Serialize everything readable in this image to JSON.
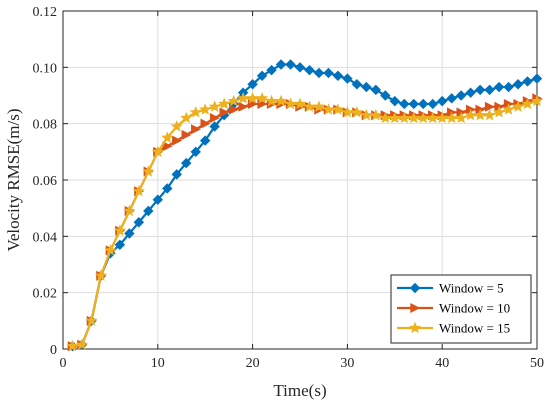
{
  "chart_data": {
    "type": "line",
    "xlabel": "Time(s)",
    "ylabel": "Velocity RMSE(m/s)",
    "xlim": [
      0,
      50
    ],
    "ylim": [
      0,
      0.12
    ],
    "xticks": [
      0,
      10,
      20,
      30,
      40,
      50
    ],
    "xtick_labels": [
      "0",
      "10",
      "20",
      "30",
      "40",
      "50"
    ],
    "yticks": [
      0,
      0.02,
      0.04,
      0.06,
      0.08,
      0.1,
      0.12
    ],
    "ytick_labels": [
      "0",
      "0.02",
      "0.04",
      "0.06",
      "0.08",
      "0.10",
      "0.12"
    ],
    "grid": true,
    "legend_position": "bottom-right",
    "x": [
      1,
      2,
      3,
      4,
      5,
      6,
      7,
      8,
      9,
      10,
      11,
      12,
      13,
      14,
      15,
      16,
      17,
      18,
      19,
      20,
      21,
      22,
      23,
      24,
      25,
      26,
      27,
      28,
      29,
      30,
      31,
      32,
      33,
      34,
      35,
      36,
      37,
      38,
      39,
      40,
      41,
      42,
      43,
      44,
      45,
      46,
      47,
      48,
      49,
      50
    ],
    "series": [
      {
        "name": "Window = 5",
        "color": "#0072BD",
        "marker": "diamond",
        "values": [
          0.001,
          0.0015,
          0.01,
          0.026,
          0.034,
          0.037,
          0.041,
          0.045,
          0.049,
          0.053,
          0.057,
          0.062,
          0.066,
          0.07,
          0.074,
          0.079,
          0.083,
          0.087,
          0.091,
          0.094,
          0.097,
          0.099,
          0.101,
          0.101,
          0.1,
          0.099,
          0.098,
          0.098,
          0.097,
          0.096,
          0.094,
          0.093,
          0.092,
          0.09,
          0.088,
          0.087,
          0.087,
          0.087,
          0.087,
          0.088,
          0.089,
          0.09,
          0.091,
          0.092,
          0.092,
          0.093,
          0.093,
          0.094,
          0.095,
          0.096
        ]
      },
      {
        "name": "Window = 10",
        "color": "#D95319",
        "marker": "triangle-right",
        "values": [
          0.001,
          0.0015,
          0.01,
          0.026,
          0.035,
          0.042,
          0.049,
          0.056,
          0.063,
          0.07,
          0.072,
          0.074,
          0.076,
          0.078,
          0.08,
          0.082,
          0.084,
          0.085,
          0.086,
          0.087,
          0.087,
          0.087,
          0.087,
          0.087,
          0.086,
          0.086,
          0.085,
          0.085,
          0.085,
          0.084,
          0.084,
          0.083,
          0.083,
          0.083,
          0.083,
          0.083,
          0.083,
          0.083,
          0.083,
          0.083,
          0.084,
          0.084,
          0.085,
          0.085,
          0.086,
          0.086,
          0.087,
          0.087,
          0.088,
          0.089
        ]
      },
      {
        "name": "Window = 15",
        "color": "#EDB120",
        "marker": "star",
        "values": [
          0.001,
          0.0015,
          0.01,
          0.026,
          0.035,
          0.042,
          0.049,
          0.056,
          0.063,
          0.07,
          0.075,
          0.079,
          0.082,
          0.084,
          0.085,
          0.086,
          0.087,
          0.088,
          0.089,
          0.089,
          0.089,
          0.088,
          0.088,
          0.087,
          0.087,
          0.086,
          0.086,
          0.085,
          0.085,
          0.084,
          0.084,
          0.083,
          0.083,
          0.082,
          0.082,
          0.082,
          0.082,
          0.082,
          0.082,
          0.082,
          0.082,
          0.082,
          0.083,
          0.083,
          0.083,
          0.084,
          0.085,
          0.086,
          0.087,
          0.088
        ]
      }
    ]
  }
}
